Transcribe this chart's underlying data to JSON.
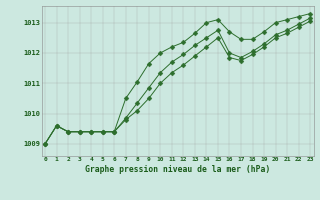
{
  "x": [
    0,
    1,
    2,
    3,
    4,
    5,
    6,
    7,
    8,
    9,
    10,
    11,
    12,
    13,
    14,
    15,
    16,
    17,
    18,
    19,
    20,
    21,
    22,
    23
  ],
  "y_high": [
    1009.0,
    1009.6,
    1009.4,
    1009.4,
    1009.4,
    1009.4,
    1009.4,
    1010.5,
    1011.05,
    1011.65,
    1012.0,
    1012.2,
    1012.35,
    1012.65,
    1013.0,
    1013.1,
    1012.7,
    1012.45,
    1012.45,
    1012.7,
    1013.0,
    1013.1,
    1013.2,
    1013.3
  ],
  "y_mid": [
    1009.0,
    1009.6,
    1009.4,
    1009.4,
    1009.4,
    1009.4,
    1009.4,
    1009.85,
    1010.35,
    1010.85,
    1011.35,
    1011.7,
    1011.95,
    1012.25,
    1012.5,
    1012.75,
    1012.0,
    1011.85,
    1012.05,
    1012.3,
    1012.6,
    1012.75,
    1012.95,
    1013.15
  ],
  "y_low": [
    1009.0,
    1009.6,
    1009.4,
    1009.4,
    1009.4,
    1009.4,
    1009.4,
    1009.8,
    1010.1,
    1010.5,
    1011.0,
    1011.35,
    1011.6,
    1011.9,
    1012.2,
    1012.5,
    1011.85,
    1011.75,
    1011.95,
    1012.2,
    1012.5,
    1012.65,
    1012.85,
    1013.05
  ],
  "line_color": "#2d6e2d",
  "bg_color": "#cce8e0",
  "grid_color": "#999999",
  "title": "Graphe pression niveau de la mer (hPa)",
  "ylabel_ticks": [
    1009,
    1010,
    1011,
    1012,
    1013
  ],
  "ylim": [
    1008.6,
    1013.55
  ],
  "xlim": [
    -0.3,
    23.3
  ],
  "title_color": "#1a5c1a",
  "markersize": 2.5,
  "linewidth": 0.7
}
